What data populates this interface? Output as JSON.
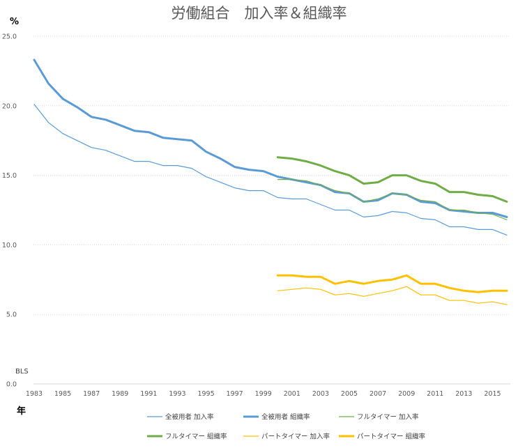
{
  "chart_data": {
    "type": "line",
    "title": "労働組合　加入率＆組織率",
    "ylabel": "%",
    "xlabel": "年",
    "source_note": "BLS",
    "ylim": [
      0,
      25
    ],
    "xlim": [
      1983,
      2016
    ],
    "yticks": [
      "0.0",
      "5.0",
      "10.0",
      "15.0",
      "20.0",
      "25.0"
    ],
    "xticks": [
      "1983",
      "1985",
      "1987",
      "1989",
      "1991",
      "1993",
      "1995",
      "1997",
      "1999",
      "2001",
      "2003",
      "2005",
      "2007",
      "2009",
      "2011",
      "2013",
      "2015"
    ],
    "grid": "horizontal",
    "legend_position": "bottom",
    "series": [
      {
        "name": "全被用者  加入率",
        "color": "#5b9bd5",
        "width": 1.2,
        "x": [
          1983,
          1984,
          1985,
          1986,
          1987,
          1988,
          1989,
          1990,
          1991,
          1992,
          1993,
          1994,
          1995,
          1996,
          1997,
          1998,
          1999,
          2000,
          2001,
          2002,
          2003,
          2004,
          2005,
          2006,
          2007,
          2008,
          2009,
          2010,
          2011,
          2012,
          2013,
          2014,
          2015,
          2016
        ],
        "values": [
          20.1,
          18.8,
          18.0,
          17.5,
          17.0,
          16.8,
          16.4,
          16.0,
          16.0,
          15.7,
          15.7,
          15.5,
          14.9,
          14.5,
          14.1,
          13.9,
          13.9,
          13.4,
          13.3,
          13.3,
          12.9,
          12.5,
          12.5,
          12.0,
          12.1,
          12.4,
          12.3,
          11.9,
          11.8,
          11.3,
          11.3,
          11.1,
          11.1,
          10.7
        ]
      },
      {
        "name": "全被用者  組織率",
        "color": "#5b9bd5",
        "width": 3,
        "x": [
          1983,
          1984,
          1985,
          1986,
          1987,
          1988,
          1989,
          1990,
          1991,
          1992,
          1993,
          1994,
          1995,
          1996,
          1997,
          1998,
          1999,
          2000,
          2001,
          2002,
          2003,
          2004,
          2005,
          2006,
          2007,
          2008,
          2009,
          2010,
          2011,
          2012,
          2013,
          2014,
          2015,
          2016
        ],
        "values": [
          23.3,
          21.6,
          20.5,
          19.9,
          19.2,
          19.0,
          18.6,
          18.2,
          18.1,
          17.7,
          17.6,
          17.5,
          16.7,
          16.2,
          15.6,
          15.4,
          15.3,
          14.9,
          14.7,
          14.5,
          14.3,
          13.8,
          13.7,
          13.1,
          13.2,
          13.7,
          13.6,
          13.1,
          13.0,
          12.5,
          12.4,
          12.3,
          12.3,
          12.0
        ]
      },
      {
        "name": "フルタイマー  加入率",
        "color": "#70ad47",
        "width": 1.2,
        "x": [
          2000,
          2001,
          2002,
          2003,
          2004,
          2005,
          2006,
          2007,
          2008,
          2009,
          2010,
          2011,
          2012,
          2013,
          2014,
          2015,
          2016
        ],
        "values": [
          14.7,
          14.7,
          14.6,
          14.3,
          13.9,
          13.7,
          13.1,
          13.3,
          13.7,
          13.6,
          13.2,
          13.1,
          12.5,
          12.5,
          12.3,
          12.2,
          11.8
        ]
      },
      {
        "name": "フルタイマー  組織率",
        "color": "#70ad47",
        "width": 3,
        "x": [
          2000,
          2001,
          2002,
          2003,
          2004,
          2005,
          2006,
          2007,
          2008,
          2009,
          2010,
          2011,
          2012,
          2013,
          2014,
          2015,
          2016
        ],
        "values": [
          16.3,
          16.2,
          16.0,
          15.7,
          15.3,
          15.0,
          14.4,
          14.5,
          15.0,
          15.0,
          14.6,
          14.4,
          13.8,
          13.8,
          13.6,
          13.5,
          13.1
        ]
      },
      {
        "name": "パートタイマー  加入率",
        "color": "#ffc000",
        "width": 1.2,
        "x": [
          2000,
          2001,
          2002,
          2003,
          2004,
          2005,
          2006,
          2007,
          2008,
          2009,
          2010,
          2011,
          2012,
          2013,
          2014,
          2015,
          2016
        ],
        "values": [
          6.7,
          6.8,
          6.9,
          6.8,
          6.4,
          6.5,
          6.3,
          6.5,
          6.7,
          7.0,
          6.4,
          6.4,
          6.0,
          6.0,
          5.8,
          5.9,
          5.7
        ]
      },
      {
        "name": "パートタイマー  組織率",
        "color": "#ffc000",
        "width": 3,
        "x": [
          2000,
          2001,
          2002,
          2003,
          2004,
          2005,
          2006,
          2007,
          2008,
          2009,
          2010,
          2011,
          2012,
          2013,
          2014,
          2015,
          2016
        ],
        "values": [
          7.8,
          7.8,
          7.7,
          7.7,
          7.2,
          7.4,
          7.2,
          7.4,
          7.5,
          7.8,
          7.2,
          7.2,
          6.9,
          6.7,
          6.6,
          6.7,
          6.7
        ]
      }
    ]
  }
}
